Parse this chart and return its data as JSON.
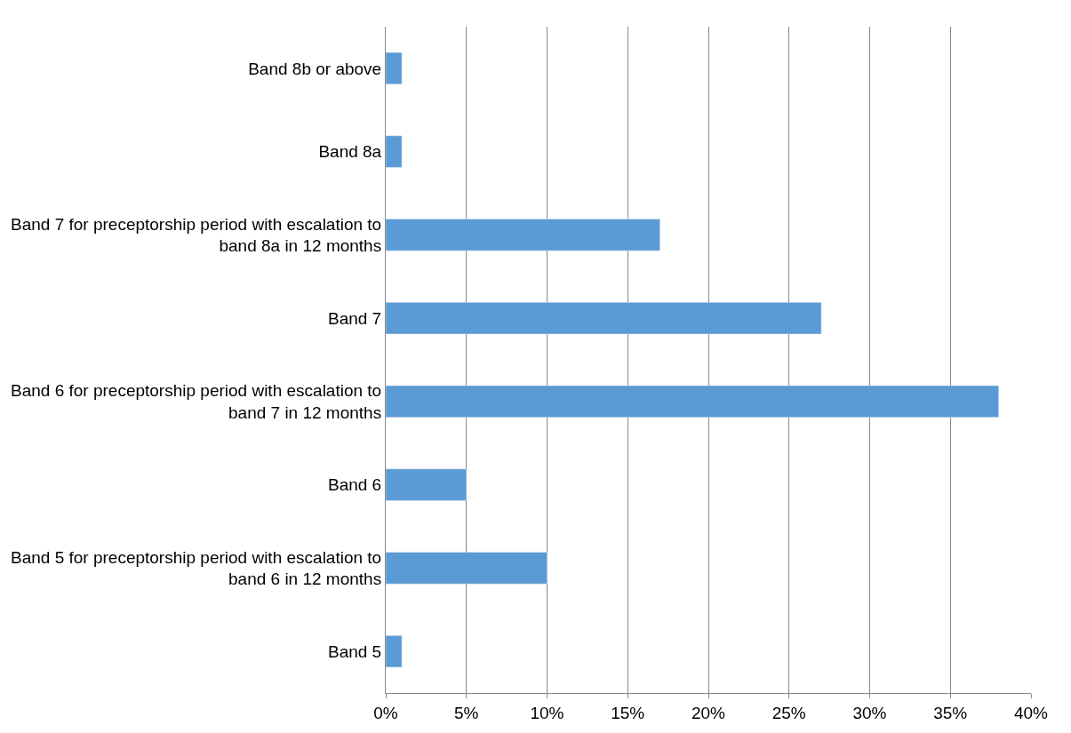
{
  "chart_data": {
    "type": "bar",
    "orientation": "horizontal",
    "categories": [
      "Band 8b or above",
      "Band 8a",
      "Band 7 for preceptorship period with escalation to band 8a in 12 months",
      "Band 7",
      "Band 6 for preceptorship period with escalation to band 7 in 12 months",
      "Band 6",
      "Band 5 for preceptorship period with escalation to band 6 in 12 months",
      "Band 5"
    ],
    "values": [
      1,
      1,
      17,
      27,
      38,
      5,
      10,
      1
    ],
    "color": "#5b9bd5",
    "xlim": [
      0,
      40
    ],
    "xticks": [
      {
        "value": 0,
        "label": "0%"
      },
      {
        "value": 5,
        "label": "5%"
      },
      {
        "value": 10,
        "label": "10%"
      },
      {
        "value": 15,
        "label": "15%"
      },
      {
        "value": 20,
        "label": "20%"
      },
      {
        "value": 25,
        "label": "25%"
      },
      {
        "value": 30,
        "label": "30%"
      },
      {
        "value": 35,
        "label": "35%"
      },
      {
        "value": 40,
        "label": "40%"
      }
    ],
    "grid": "x",
    "legend": false
  }
}
